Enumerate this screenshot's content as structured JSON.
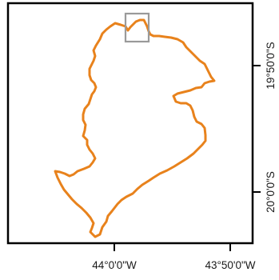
{
  "map": {
    "x_axis": {
      "tick_labels": [
        "44°0'0\"W",
        "43°50'0\"W"
      ]
    },
    "y_axis": {
      "tick_labels": [
        "19°50'0\"S",
        "20°0'0\"S"
      ],
      "position": "right"
    },
    "boundary": {
      "stroke_color": "#E8821C"
    },
    "locator_box": {
      "stroke_color": "#9a9a9a"
    },
    "frame_color": "#000000"
  }
}
